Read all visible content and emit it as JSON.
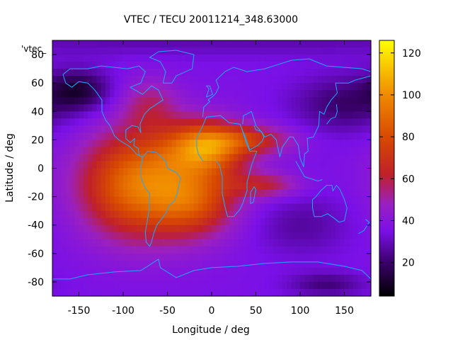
{
  "chart_data": {
    "type": "heatmap",
    "title": "VTEC / TECU 20011214_348.63000",
    "xlabel": "Longitude / deg",
    "ylabel": "Latitude / deg",
    "xlim": [
      -180,
      180
    ],
    "ylim": [
      -90,
      90
    ],
    "x_ticks": [
      -150,
      -100,
      -50,
      0,
      50,
      100,
      150
    ],
    "y_ticks": [
      -80,
      -60,
      -40,
      -20,
      0,
      20,
      40,
      60,
      80
    ],
    "legend_key_label": "'vtec_",
    "colorbar": {
      "range": [
        4,
        126
      ],
      "ticks": [
        20,
        40,
        60,
        80,
        100,
        120
      ],
      "colormap": [
        {
          "v": 4,
          "color": "#000000"
        },
        {
          "v": 20,
          "color": "#3a006a"
        },
        {
          "v": 35,
          "color": "#7a10e8"
        },
        {
          "v": 48,
          "color": "#9a20c0"
        },
        {
          "v": 62,
          "color": "#c0202a"
        },
        {
          "v": 80,
          "color": "#d84a00"
        },
        {
          "v": 100,
          "color": "#f08a00"
        },
        {
          "v": 126,
          "color": "#ffff00"
        }
      ]
    },
    "field": {
      "base": 36,
      "blobs": [
        {
          "lon": -60,
          "lat": -10,
          "slon": 55,
          "slat": 26,
          "amp": 52
        },
        {
          "lon": -100,
          "lat": -15,
          "slon": 35,
          "slat": 25,
          "amp": 14
        },
        {
          "lon": -5,
          "lat": 15,
          "slon": 30,
          "slat": 12,
          "amp": 46
        },
        {
          "lon": 45,
          "lat": 20,
          "slon": 35,
          "slat": 7,
          "amp": 26
        },
        {
          "lon": 60,
          "lat": -12,
          "slon": 28,
          "slat": 6,
          "amp": 22
        },
        {
          "lon": -20,
          "lat": -25,
          "slon": 30,
          "slat": 15,
          "amp": 20
        },
        {
          "lon": -70,
          "lat": 45,
          "slon": 22,
          "slat": 13,
          "amp": 16
        },
        {
          "lon": -150,
          "lat": 55,
          "slon": 25,
          "slat": 10,
          "amp": -22
        },
        {
          "lon": 150,
          "lat": 45,
          "slon": 40,
          "slat": 14,
          "amp": -16
        },
        {
          "lon": 100,
          "lat": -40,
          "slon": 40,
          "slat": 15,
          "amp": -10
        },
        {
          "lon": 130,
          "lat": -82,
          "slon": 30,
          "slat": 6,
          "amp": -14
        },
        {
          "lon": 0,
          "lat": 90,
          "slon": 360,
          "slat": 8,
          "amp": -8
        }
      ]
    }
  }
}
